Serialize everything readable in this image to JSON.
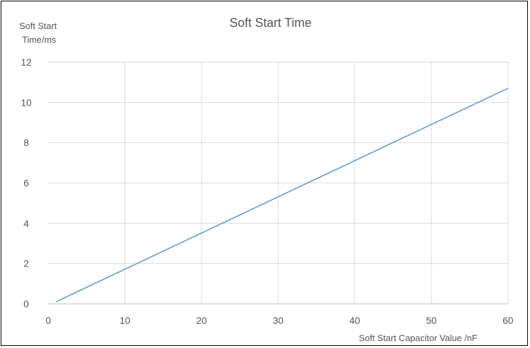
{
  "chart_data": {
    "type": "line",
    "title": "Soft Start Time",
    "ylabel_line1": "Soft Start",
    "ylabel_line2": "Time/ms",
    "xlabel": "Soft Start Capacitor Value /nF",
    "xlim": [
      0,
      60
    ],
    "ylim": [
      0,
      12
    ],
    "x_ticks": [
      0,
      10,
      20,
      30,
      40,
      50,
      60
    ],
    "y_ticks": [
      0,
      2,
      4,
      6,
      8,
      10,
      12
    ],
    "grid": true,
    "legend": "none",
    "series": [
      {
        "color": "#5b9bd5",
        "x": [
          1,
          60
        ],
        "y": [
          0.1,
          10.7
        ]
      }
    ]
  }
}
